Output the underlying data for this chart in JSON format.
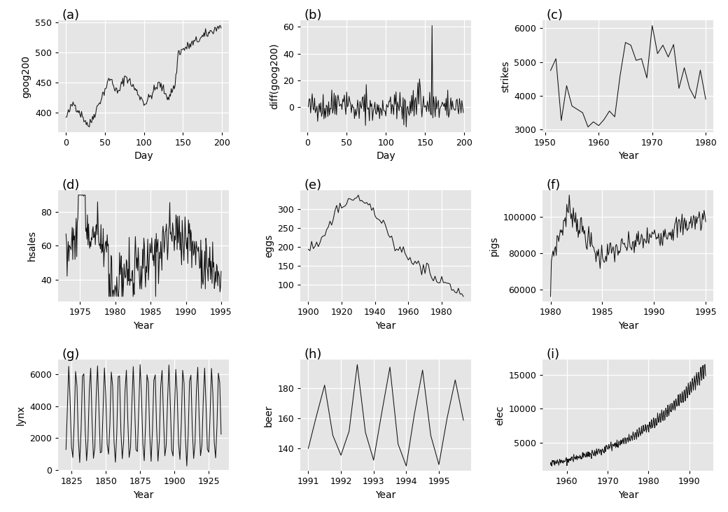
{
  "bg_color": "#e5e5e5",
  "line_color": "#111111",
  "grid_color": "#ffffff",
  "panel_labels": [
    "(a)",
    "(b)",
    "(c)",
    "(d)",
    "(e)",
    "(f)",
    "(g)",
    "(h)",
    "(i)"
  ],
  "ylabels": [
    "goog200",
    "diff(goog200)",
    "strikes",
    "hsales",
    "eggs",
    "pigs",
    "lynx",
    "beer",
    "elec"
  ],
  "xlabels": [
    "Day",
    "Day",
    "Year",
    "Year",
    "Year",
    "Year",
    "Year",
    "Year",
    "Year"
  ],
  "label_fs": 10,
  "tick_fs": 9,
  "panel_label_fs": 13
}
